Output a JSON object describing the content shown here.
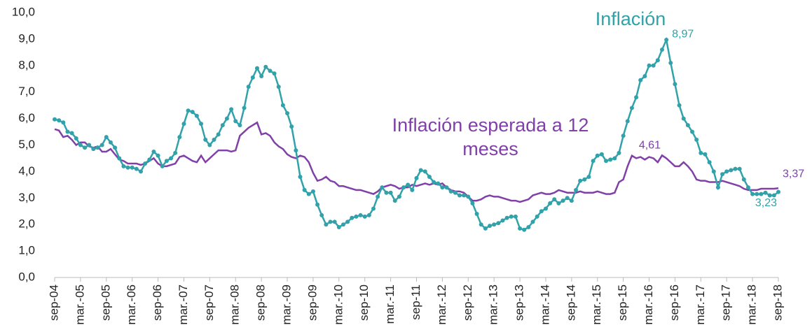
{
  "chart_data": {
    "type": "line",
    "categories": [
      "sep-04",
      null,
      null,
      null,
      null,
      null,
      "mar.-05",
      null,
      null,
      null,
      null,
      null,
      "sep-05",
      null,
      null,
      null,
      null,
      null,
      "mar.-06",
      null,
      null,
      null,
      null,
      null,
      "sep-06",
      null,
      null,
      null,
      null,
      null,
      "mar.-07",
      null,
      null,
      null,
      null,
      null,
      "sep-07",
      null,
      null,
      null,
      null,
      null,
      "mar.-08",
      null,
      null,
      null,
      null,
      null,
      "sep-08",
      null,
      null,
      null,
      null,
      null,
      "mar.-09",
      null,
      null,
      null,
      null,
      null,
      "sep-09",
      null,
      null,
      null,
      null,
      null,
      "mar.-10",
      null,
      null,
      null,
      null,
      null,
      "sep-10",
      null,
      null,
      null,
      null,
      null,
      "mar.-11",
      null,
      null,
      null,
      null,
      null,
      "sep-11",
      null,
      null,
      null,
      null,
      null,
      "mar.-12",
      null,
      null,
      null,
      null,
      null,
      "sep-12",
      null,
      null,
      null,
      null,
      null,
      "mar.-13",
      null,
      null,
      null,
      null,
      null,
      "sep-13",
      null,
      null,
      null,
      null,
      null,
      "mar.-14",
      null,
      null,
      null,
      null,
      null,
      "sep-14",
      null,
      null,
      null,
      null,
      null,
      "mar.-15",
      null,
      null,
      null,
      null,
      null,
      "sep-15",
      null,
      null,
      null,
      null,
      null,
      "mar.-16",
      null,
      null,
      null,
      null,
      null,
      "sep-16",
      null,
      null,
      null,
      null,
      null,
      "mar.-17",
      null,
      null,
      null,
      null,
      null,
      "sep-17",
      null,
      null,
      null,
      null,
      null,
      "mar.-18",
      null,
      null,
      null,
      null,
      null,
      "sep-18"
    ],
    "series": [
      {
        "name": "Inflación",
        "color": "#31a2aa",
        "markers": true,
        "values": [
          5.97,
          5.93,
          5.85,
          5.5,
          5.45,
          5.25,
          5.0,
          4.9,
          5.0,
          4.85,
          4.9,
          5.0,
          5.3,
          5.1,
          4.9,
          4.5,
          4.2,
          4.15,
          4.15,
          4.1,
          4.0,
          4.3,
          4.45,
          4.75,
          4.6,
          4.2,
          4.4,
          4.5,
          4.7,
          5.3,
          5.8,
          6.3,
          6.25,
          6.1,
          5.8,
          5.2,
          5.0,
          5.2,
          5.4,
          5.75,
          6.0,
          6.35,
          5.9,
          5.75,
          6.4,
          7.2,
          7.55,
          7.9,
          7.6,
          7.95,
          7.8,
          7.7,
          7.2,
          6.5,
          6.2,
          5.7,
          4.8,
          3.8,
          3.3,
          3.15,
          3.25,
          2.75,
          2.35,
          2.0,
          2.1,
          2.1,
          1.9,
          2.0,
          2.1,
          2.25,
          2.3,
          2.35,
          2.3,
          2.35,
          2.6,
          3.05,
          3.4,
          3.2,
          3.2,
          2.9,
          3.05,
          3.4,
          3.5,
          3.3,
          3.75,
          4.05,
          4.0,
          3.8,
          3.6,
          3.55,
          3.4,
          3.4,
          3.25,
          3.2,
          3.1,
          3.1,
          3.05,
          2.8,
          2.4,
          2.0,
          1.85,
          1.95,
          2.0,
          2.05,
          2.15,
          2.25,
          2.3,
          2.3,
          1.85,
          1.8,
          1.9,
          2.1,
          2.3,
          2.5,
          2.6,
          2.8,
          2.95,
          2.8,
          2.9,
          3.0,
          2.9,
          3.3,
          3.65,
          3.7,
          3.8,
          4.4,
          4.6,
          4.65,
          4.4,
          4.45,
          4.5,
          4.7,
          5.35,
          5.9,
          6.4,
          6.8,
          7.45,
          7.6,
          8.0,
          8.0,
          8.2,
          8.6,
          8.97,
          8.1,
          7.3,
          6.5,
          6.0,
          5.75,
          5.5,
          5.2,
          4.7,
          4.65,
          4.35,
          4.0,
          3.4,
          3.9,
          4.0,
          4.05,
          4.1,
          4.1,
          3.7,
          3.4,
          3.15,
          3.15,
          3.15,
          3.2,
          3.1,
          3.1,
          3.23
        ],
        "value_labels": [
          null,
          null,
          null,
          null,
          null,
          null,
          null,
          null,
          null,
          null,
          null,
          null,
          null,
          null,
          null,
          null,
          null,
          null,
          null,
          null,
          null,
          null,
          null,
          null,
          null,
          null,
          null,
          null,
          null,
          null,
          null,
          null,
          null,
          null,
          null,
          null,
          null,
          null,
          null,
          null,
          null,
          null,
          null,
          null,
          null,
          null,
          null,
          null,
          null,
          null,
          null,
          null,
          null,
          null,
          null,
          null,
          null,
          null,
          null,
          null,
          null,
          null,
          null,
          null,
          null,
          null,
          null,
          null,
          null,
          null,
          null,
          null,
          null,
          null,
          null,
          null,
          null,
          null,
          null,
          null,
          null,
          null,
          null,
          null,
          null,
          null,
          null,
          null,
          null,
          null,
          null,
          null,
          null,
          null,
          null,
          null,
          null,
          null,
          null,
          null,
          null,
          null,
          null,
          null,
          null,
          null,
          null,
          null,
          null,
          null,
          null,
          null,
          null,
          null,
          null,
          null,
          null,
          null,
          null,
          null,
          null,
          null,
          null,
          null,
          null,
          null,
          null,
          null,
          null,
          null,
          null,
          null,
          null,
          null,
          null,
          null,
          null,
          null,
          null,
          null,
          null,
          null,
          "8,97",
          null,
          null,
          null,
          null,
          null,
          null,
          null,
          null,
          null,
          null,
          null,
          null,
          null,
          null,
          null,
          null,
          null,
          null,
          null,
          null,
          null,
          null,
          null,
          null,
          null,
          "3,23"
        ]
      },
      {
        "name": "Inflación esperada a 12 meses",
        "color": "#8040a8",
        "markers": false,
        "values": [
          5.6,
          5.55,
          5.3,
          5.35,
          5.2,
          5.0,
          5.1,
          5.1,
          4.95,
          4.9,
          4.95,
          4.75,
          4.75,
          4.85,
          4.65,
          4.45,
          4.4,
          4.3,
          4.3,
          4.3,
          4.25,
          4.3,
          4.4,
          4.5,
          4.3,
          4.2,
          4.2,
          4.25,
          4.3,
          4.55,
          4.6,
          4.5,
          4.4,
          4.35,
          4.6,
          4.35,
          4.5,
          4.65,
          4.8,
          4.8,
          4.8,
          4.75,
          4.8,
          5.35,
          5.5,
          5.65,
          5.75,
          5.85,
          5.4,
          5.45,
          5.35,
          5.1,
          4.95,
          4.85,
          4.65,
          4.55,
          4.5,
          4.6,
          4.55,
          4.35,
          3.95,
          3.65,
          3.7,
          3.8,
          3.65,
          3.6,
          3.45,
          3.45,
          3.4,
          3.35,
          3.3,
          3.3,
          3.25,
          3.2,
          3.15,
          3.25,
          3.4,
          3.45,
          3.5,
          3.45,
          3.35,
          3.4,
          3.4,
          3.5,
          3.45,
          3.5,
          3.55,
          3.5,
          3.55,
          3.5,
          3.55,
          3.4,
          3.3,
          3.25,
          3.25,
          3.2,
          3.05,
          2.9,
          2.9,
          2.95,
          3.05,
          3.1,
          3.05,
          3.05,
          3.0,
          2.95,
          2.9,
          2.9,
          2.85,
          2.9,
          2.95,
          3.1,
          3.15,
          3.2,
          3.15,
          3.15,
          3.2,
          3.3,
          3.25,
          3.2,
          3.2,
          3.2,
          3.25,
          3.2,
          3.2,
          3.2,
          3.25,
          3.2,
          3.15,
          3.15,
          3.2,
          3.6,
          3.7,
          4.2,
          4.6,
          4.5,
          4.55,
          4.45,
          4.55,
          4.5,
          4.35,
          4.61,
          4.5,
          4.35,
          4.2,
          4.2,
          4.35,
          4.2,
          4.0,
          3.7,
          3.65,
          3.65,
          3.6,
          3.6,
          3.6,
          3.65,
          3.6,
          3.55,
          3.5,
          3.45,
          3.35,
          3.3,
          3.3,
          3.3,
          3.35,
          3.35,
          3.35,
          3.35,
          3.37
        ],
        "value_labels": [
          null,
          null,
          null,
          null,
          null,
          null,
          null,
          null,
          null,
          null,
          null,
          null,
          null,
          null,
          null,
          null,
          null,
          null,
          null,
          null,
          null,
          null,
          null,
          null,
          null,
          null,
          null,
          null,
          null,
          null,
          null,
          null,
          null,
          null,
          null,
          null,
          null,
          null,
          null,
          null,
          null,
          null,
          null,
          null,
          null,
          null,
          null,
          null,
          null,
          null,
          null,
          null,
          null,
          null,
          null,
          null,
          null,
          null,
          null,
          null,
          null,
          null,
          null,
          null,
          null,
          null,
          null,
          null,
          null,
          null,
          null,
          null,
          null,
          null,
          null,
          null,
          null,
          null,
          null,
          null,
          null,
          null,
          null,
          null,
          null,
          null,
          null,
          null,
          null,
          null,
          null,
          null,
          null,
          null,
          null,
          null,
          null,
          null,
          null,
          null,
          null,
          null,
          null,
          null,
          null,
          null,
          null,
          null,
          null,
          null,
          null,
          null,
          null,
          null,
          null,
          null,
          null,
          null,
          null,
          null,
          null,
          null,
          null,
          null,
          null,
          null,
          null,
          null,
          null,
          null,
          null,
          null,
          null,
          null,
          null,
          null,
          null,
          null,
          null,
          null,
          null,
          "4,61",
          null,
          null,
          null,
          null,
          null,
          null,
          null,
          null,
          null,
          null,
          null,
          null,
          null,
          null,
          null,
          null,
          null,
          null,
          null,
          null,
          null,
          null,
          null,
          null,
          null,
          null,
          "3,37"
        ]
      }
    ],
    "ylim": [
      0,
      10
    ],
    "yticks": [
      {
        "value": 0,
        "label": "0,0"
      },
      {
        "value": 1,
        "label": "1,0"
      },
      {
        "value": 2,
        "label": "2,0"
      },
      {
        "value": 3,
        "label": "3,0"
      },
      {
        "value": 4,
        "label": "4,0"
      },
      {
        "value": 5,
        "label": "5,0"
      },
      {
        "value": 6,
        "label": "6,0"
      },
      {
        "value": 7,
        "label": "7,0"
      },
      {
        "value": 8,
        "label": "8,0"
      },
      {
        "value": 9,
        "label": "9,0"
      },
      {
        "value": 10,
        "label": "10,0"
      }
    ],
    "grid": false
  }
}
